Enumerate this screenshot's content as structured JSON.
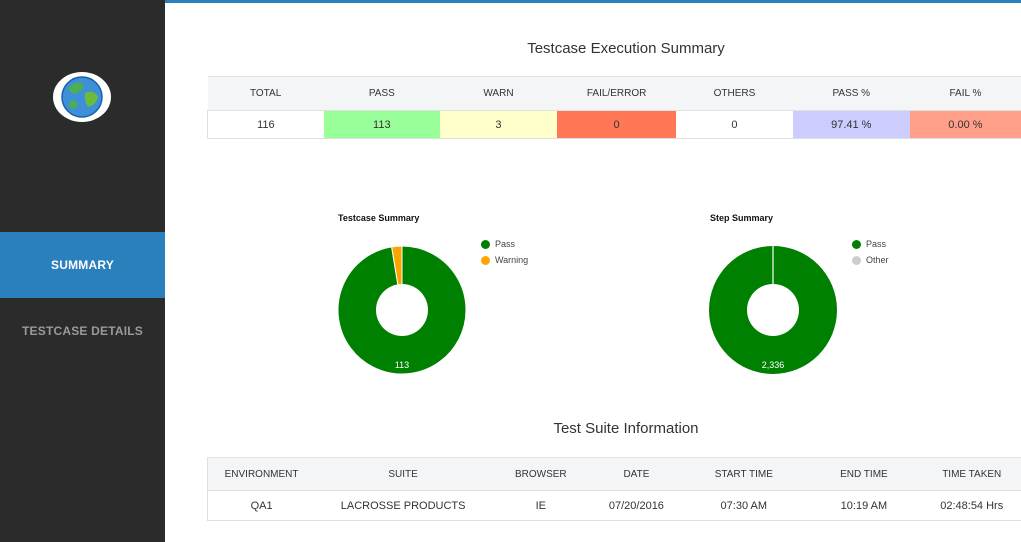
{
  "sidebar": {
    "nav": [
      {
        "label": "SUMMARY",
        "active": true
      },
      {
        "label": "TESTCASE DETAILS",
        "active": false
      }
    ]
  },
  "execution": {
    "title": "Testcase Execution Summary",
    "headers": [
      "TOTAL",
      "PASS",
      "WARN",
      "FAIL/ERROR",
      "OTHERS",
      "PASS %",
      "FAIL %"
    ],
    "values": [
      "116",
      "113",
      "3",
      "0",
      "0",
      "97.41 %",
      "0.00 %"
    ],
    "cell_colors": [
      "#ffffff",
      "#99ff99",
      "#ffffcc",
      "#ff7755",
      "#ffffff",
      "#ccccff",
      "#ff9f8a"
    ]
  },
  "charts": {
    "testcase": {
      "title": "Testcase Summary",
      "legend": [
        {
          "name": "Pass",
          "color": "#008000"
        },
        {
          "name": "Warning",
          "color": "#ffa500"
        }
      ],
      "center_label": "113"
    },
    "step": {
      "title": "Step Summary",
      "legend": [
        {
          "name": "Pass",
          "color": "#008000"
        },
        {
          "name": "Other",
          "color": "#cccccc"
        }
      ],
      "center_label": "2,336"
    }
  },
  "chart_data": [
    {
      "type": "pie",
      "title": "Testcase Summary",
      "categories": [
        "Pass",
        "Warning"
      ],
      "values": [
        113,
        3
      ],
      "colors": [
        "#008000",
        "#ffa500"
      ],
      "legend": "right"
    },
    {
      "type": "pie",
      "title": "Step Summary",
      "categories": [
        "Pass",
        "Other"
      ],
      "values": [
        2336,
        0
      ],
      "colors": [
        "#008000",
        "#cccccc"
      ],
      "legend": "right"
    }
  ],
  "suite": {
    "title": "Test Suite Information",
    "headers": [
      "ENVIRONMENT",
      "SUITE",
      "BROWSER",
      "DATE",
      "START TIME",
      "END TIME",
      "TIME TAKEN"
    ],
    "row": [
      "QA1",
      "LACROSSE PRODUCTS",
      "IE",
      "07/20/2016",
      "07:30 AM",
      "10:19 AM",
      "02:48:54 Hrs"
    ]
  }
}
